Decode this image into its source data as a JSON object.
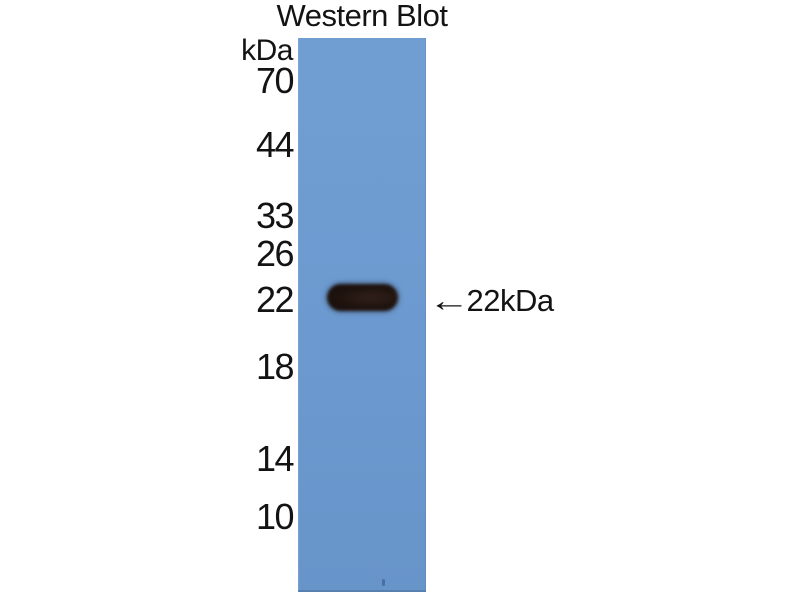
{
  "figure": {
    "title": "Western Blot",
    "unit_label": "kDa",
    "ladder_markers": [
      "70",
      "44",
      "33",
      "26",
      "22",
      "18",
      "14",
      "10"
    ],
    "band": {
      "arrow": "←",
      "label": "22kDa"
    },
    "colors": {
      "membrane_blue": "#6c9ad0",
      "band_dark": "#1b110c",
      "text": "#131313",
      "background": "#ffffff"
    }
  }
}
